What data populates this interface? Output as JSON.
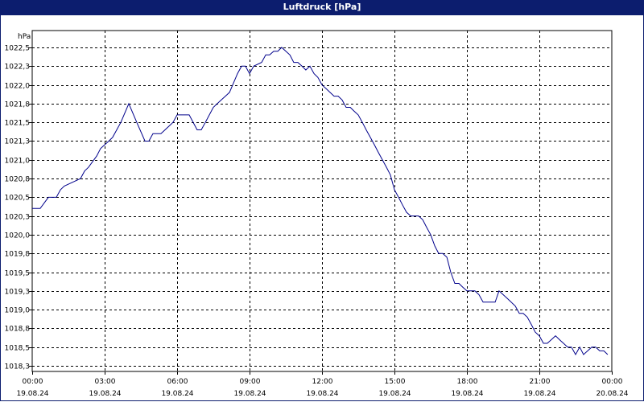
{
  "window": {
    "title": "Luftdruck [hPa]"
  },
  "colors": {
    "titlebar": "#0c1d6e",
    "series": "#00008b",
    "grid": "#000000",
    "background": "#ffffff"
  },
  "chart_data": {
    "type": "line",
    "title": "Luftdruck [hPa]",
    "ylabel": "hPa",
    "xlabel": "",
    "ylim": [
      1018.3,
      1022.5
    ],
    "xlim": [
      0,
      24
    ],
    "grid": true,
    "y_ticks": [
      "1018,3",
      "1018,5",
      "1018,8",
      "1019,0",
      "1019,3",
      "1019,5",
      "1019,8",
      "1020,0",
      "1020,3",
      "1020,5",
      "1020,8",
      "1021,0",
      "1021,3",
      "1021,5",
      "1021,8",
      "1022,0",
      "1022,3",
      "1022,5"
    ],
    "y_tick_values": [
      1018.25,
      1018.5,
      1018.75,
      1019.0,
      1019.25,
      1019.5,
      1019.75,
      1020.0,
      1020.25,
      1020.5,
      1020.75,
      1021.0,
      1021.25,
      1021.5,
      1021.75,
      1022.0,
      1022.25,
      1022.5
    ],
    "x_ticks": [
      {
        "time": "00:00",
        "date": "19.08.24"
      },
      {
        "time": "03:00",
        "date": "19.08.24"
      },
      {
        "time": "06:00",
        "date": "19.08.24"
      },
      {
        "time": "09:00",
        "date": "19.08.24"
      },
      {
        "time": "12:00",
        "date": "19.08.24"
      },
      {
        "time": "15:00",
        "date": "19.08.24"
      },
      {
        "time": "18:00",
        "date": "19.08.24"
      },
      {
        "time": "21:00",
        "date": "19.08.24"
      },
      {
        "time": "00:00",
        "date": "20.08.24"
      }
    ],
    "series": [
      {
        "name": "",
        "x": [
          0,
          0.33,
          0.67,
          1.0,
          1.17,
          1.33,
          1.67,
          2.0,
          2.17,
          2.33,
          2.67,
          2.83,
          3.0,
          3.17,
          3.33,
          3.67,
          4.0,
          4.33,
          4.67,
          4.83,
          5.0,
          5.33,
          5.67,
          5.83,
          6.0,
          6.17,
          6.5,
          6.83,
          7.0,
          7.17,
          7.5,
          7.83,
          8.0,
          8.17,
          8.5,
          8.67,
          8.83,
          9.0,
          9.17,
          9.5,
          9.67,
          9.83,
          10.0,
          10.17,
          10.33,
          10.67,
          10.83,
          11.0,
          11.17,
          11.33,
          11.5,
          11.67,
          11.83,
          12.0,
          12.17,
          12.5,
          12.67,
          12.83,
          13.0,
          13.17,
          13.33,
          13.5,
          13.67,
          13.83,
          14.0,
          14.17,
          14.33,
          14.5,
          14.67,
          14.83,
          15.0,
          15.17,
          15.33,
          15.5,
          15.67,
          15.83,
          16.0,
          16.17,
          16.33,
          16.5,
          16.67,
          16.83,
          17.0,
          17.17,
          17.33,
          17.5,
          17.67,
          17.83,
          18.0,
          18.17,
          18.33,
          18.5,
          18.67,
          19.0,
          19.17,
          19.33,
          19.67,
          20.0,
          20.17,
          20.33,
          20.5,
          20.67,
          20.83,
          21.0,
          21.17,
          21.33,
          21.5,
          21.67,
          21.83,
          22.0,
          22.17,
          22.33,
          22.5,
          22.67,
          22.83,
          23.0,
          23.17,
          23.33,
          23.5,
          23.67,
          23.83
        ],
        "values": [
          1020.35,
          1020.35,
          1020.5,
          1020.5,
          1020.6,
          1020.65,
          1020.7,
          1020.75,
          1020.85,
          1020.9,
          1021.05,
          1021.15,
          1021.2,
          1021.25,
          1021.3,
          1021.5,
          1021.75,
          1021.5,
          1021.25,
          1021.25,
          1021.35,
          1021.35,
          1021.45,
          1021.5,
          1021.6,
          1021.6,
          1021.6,
          1021.4,
          1021.4,
          1021.5,
          1021.7,
          1021.8,
          1021.85,
          1021.9,
          1022.15,
          1022.25,
          1022.25,
          1022.15,
          1022.25,
          1022.3,
          1022.4,
          1022.4,
          1022.45,
          1022.45,
          1022.5,
          1022.4,
          1022.3,
          1022.3,
          1022.25,
          1022.2,
          1022.25,
          1022.15,
          1022.1,
          1022.0,
          1021.95,
          1021.85,
          1021.85,
          1021.8,
          1021.7,
          1021.7,
          1021.65,
          1021.6,
          1021.5,
          1021.4,
          1021.3,
          1021.2,
          1021.1,
          1021.0,
          1020.9,
          1020.8,
          1020.6,
          1020.5,
          1020.4,
          1020.3,
          1020.25,
          1020.25,
          1020.25,
          1020.2,
          1020.1,
          1020.0,
          1019.85,
          1019.75,
          1019.75,
          1019.7,
          1019.5,
          1019.35,
          1019.35,
          1019.3,
          1019.25,
          1019.25,
          1019.25,
          1019.2,
          1019.1,
          1019.1,
          1019.1,
          1019.25,
          1019.15,
          1019.05,
          1018.95,
          1018.95,
          1018.9,
          1018.8,
          1018.7,
          1018.65,
          1018.55,
          1018.55,
          1018.6,
          1018.65,
          1018.6,
          1018.55,
          1018.5,
          1018.5,
          1018.4,
          1018.5,
          1018.4,
          1018.45,
          1018.5,
          1018.5,
          1018.45,
          1018.45,
          1018.4
        ]
      }
    ]
  }
}
